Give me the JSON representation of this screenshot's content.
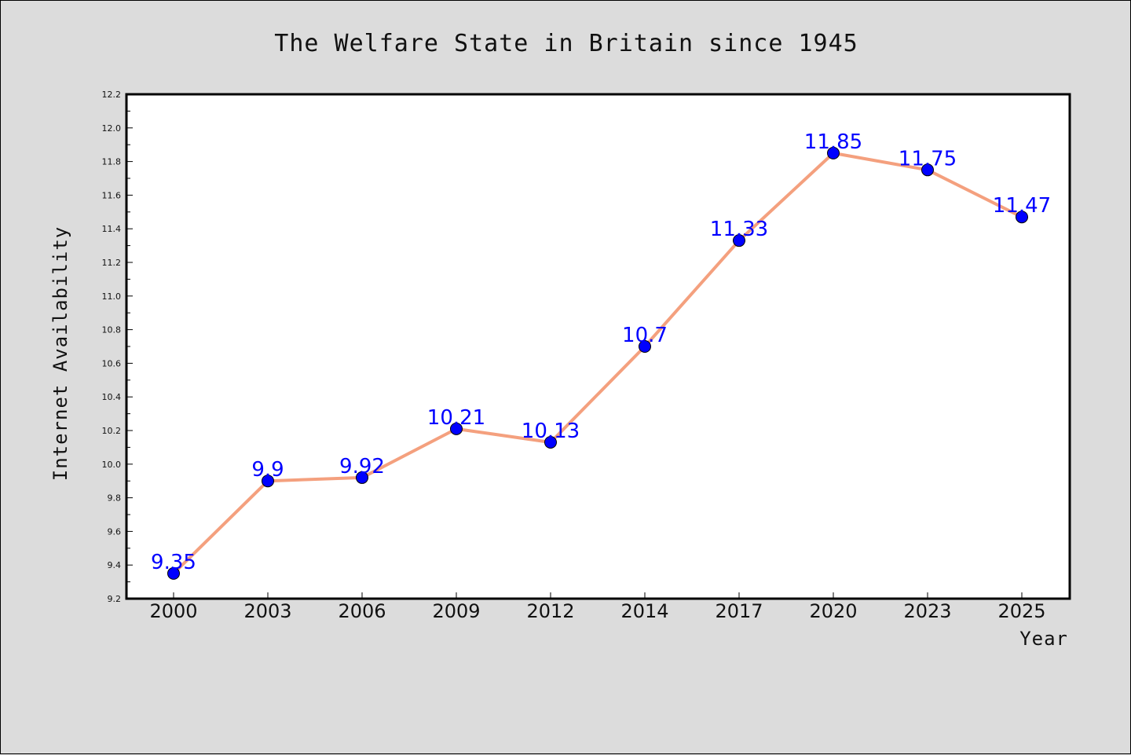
{
  "chart_data": {
    "type": "line",
    "title": "The Welfare State in Britain since 1945",
    "xlabel": "Year",
    "ylabel": "Internet Availability",
    "categories": [
      "2000",
      "2003",
      "2006",
      "2009",
      "2012",
      "2014",
      "2017",
      "2020",
      "2023",
      "2025"
    ],
    "values": [
      9.35,
      9.9,
      9.92,
      10.21,
      10.13,
      10.7,
      11.33,
      11.85,
      11.75,
      11.47
    ],
    "data_labels": [
      "9.35",
      "9.9",
      "9.92",
      "10.21",
      "10.13",
      "10.7",
      "11.33",
      "11.85",
      "11.75",
      "11.47"
    ],
    "ylim": [
      9.2,
      12.2
    ],
    "yticks": [
      "9.2",
      "9.4",
      "9.6",
      "9.8",
      "10.0",
      "10.2",
      "10.4",
      "10.6",
      "10.8",
      "11.0",
      "11.2",
      "11.4",
      "11.6",
      "11.8",
      "12.0",
      "12.2"
    ],
    "grid": false,
    "colors": {
      "line": "#f4a07e",
      "marker": "#0000ff",
      "data_label": "#0000ff",
      "background": "#dcdcdc",
      "plot_background": "#ffffff"
    }
  }
}
